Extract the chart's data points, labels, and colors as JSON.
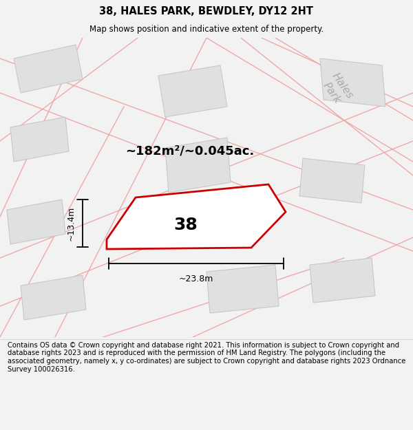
{
  "title": "38, HALES PARK, BEWDLEY, DY12 2HT",
  "subtitle": "Map shows position and indicative extent of the property.",
  "area_label": "~182m²/~0.045ac.",
  "width_label": "~23.8m",
  "height_label": "~13.4m",
  "plot_number": "38",
  "footer": "Contains OS data © Crown copyright and database right 2021. This information is subject to Crown copyright and database rights 2023 and is reproduced with the permission of HM Land Registry. The polygons (including the associated geometry, namely x, y co-ordinates) are subject to Crown copyright and database rights 2023 Ordnance Survey 100026316.",
  "bg_color": "#f2f2f2",
  "map_bg": "#f9f9f9",
  "building_fill": "#e0e0e0",
  "building_edge": "#c8c8c8",
  "road_line_color": "#f0a0a0",
  "plot_line_color": "#cc0000",
  "hales_park_color": "#aaaaaa",
  "title_fontsize": 10.5,
  "subtitle_fontsize": 8.5,
  "area_fontsize": 13,
  "plot_num_fontsize": 18,
  "dim_fontsize": 9,
  "footer_fontsize": 7.2,
  "hales_park_fontsize": 11
}
